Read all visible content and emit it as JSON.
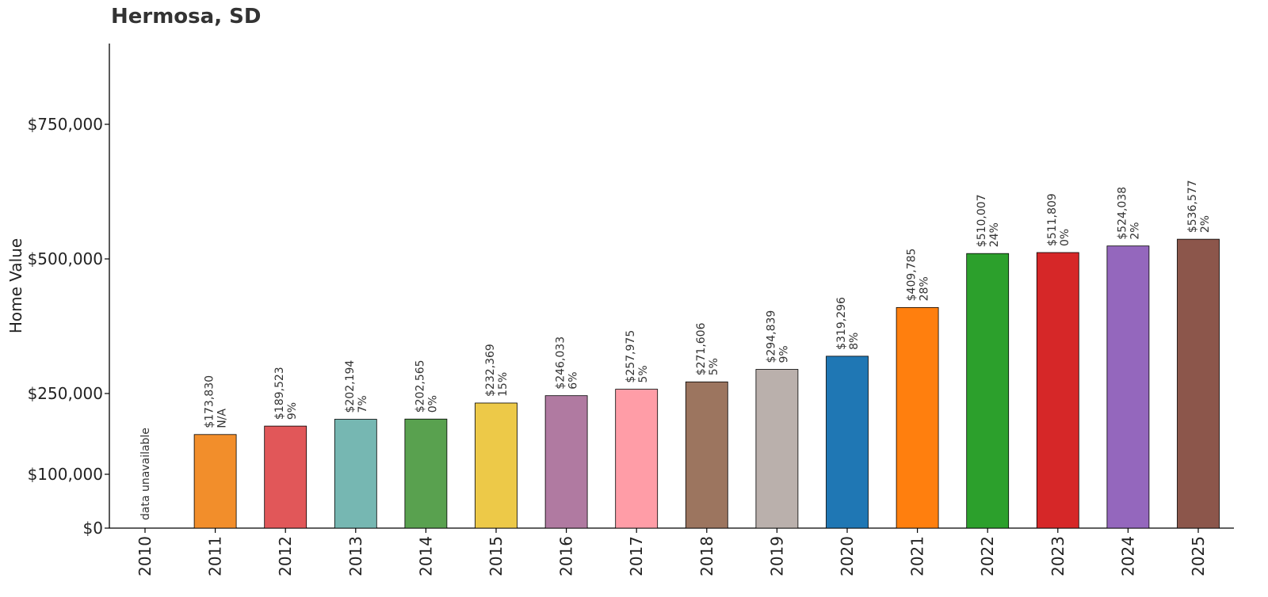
{
  "chart_data": {
    "type": "bar",
    "title": "Hermosa, SD",
    "xlabel": "",
    "ylabel": "Home Value",
    "categories": [
      "2010",
      "2011",
      "2012",
      "2013",
      "2014",
      "2015",
      "2016",
      "2017",
      "2018",
      "2019",
      "2020",
      "2021",
      "2022",
      "2023",
      "2024",
      "2025"
    ],
    "values": [
      null,
      173830,
      189523,
      202194,
      202565,
      232369,
      246033,
      257975,
      271606,
      294839,
      319296,
      409785,
      510007,
      511809,
      524038,
      536577
    ],
    "value_labels": [
      "",
      "$173,830",
      "$189,523",
      "$202,194",
      "$202,565",
      "$232,369",
      "$246,033",
      "$257,975",
      "$271,606",
      "$294,839",
      "$319,296",
      "$409,785",
      "$510,007",
      "$511,809",
      "$524,038",
      "$536,577"
    ],
    "change_labels": [
      "",
      "N/A",
      "9%",
      "7%",
      "0%",
      "15%",
      "6%",
      "5%",
      "5%",
      "9%",
      "8%",
      "28%",
      "24%",
      "0%",
      "2%",
      "2%"
    ],
    "missing_label": "data unavailable",
    "colors": [
      "#cccccc",
      "#F28E2B",
      "#E15759",
      "#76B7B2",
      "#59A14F",
      "#EDC948",
      "#B07AA1",
      "#FF9DA7",
      "#9C755F",
      "#BAB0AC",
      "#1F77B4",
      "#FF7F0E",
      "#2CA02C",
      "#D62728",
      "#9467BD",
      "#8C564B"
    ],
    "yticks": [
      0,
      100000,
      250000,
      500000,
      750000
    ],
    "ytick_labels": [
      "$0",
      "$100,000",
      "$250,000",
      "$500,000",
      "$750,000"
    ],
    "ylim": [
      0,
      900000
    ],
    "grid": false,
    "legend": "none"
  }
}
